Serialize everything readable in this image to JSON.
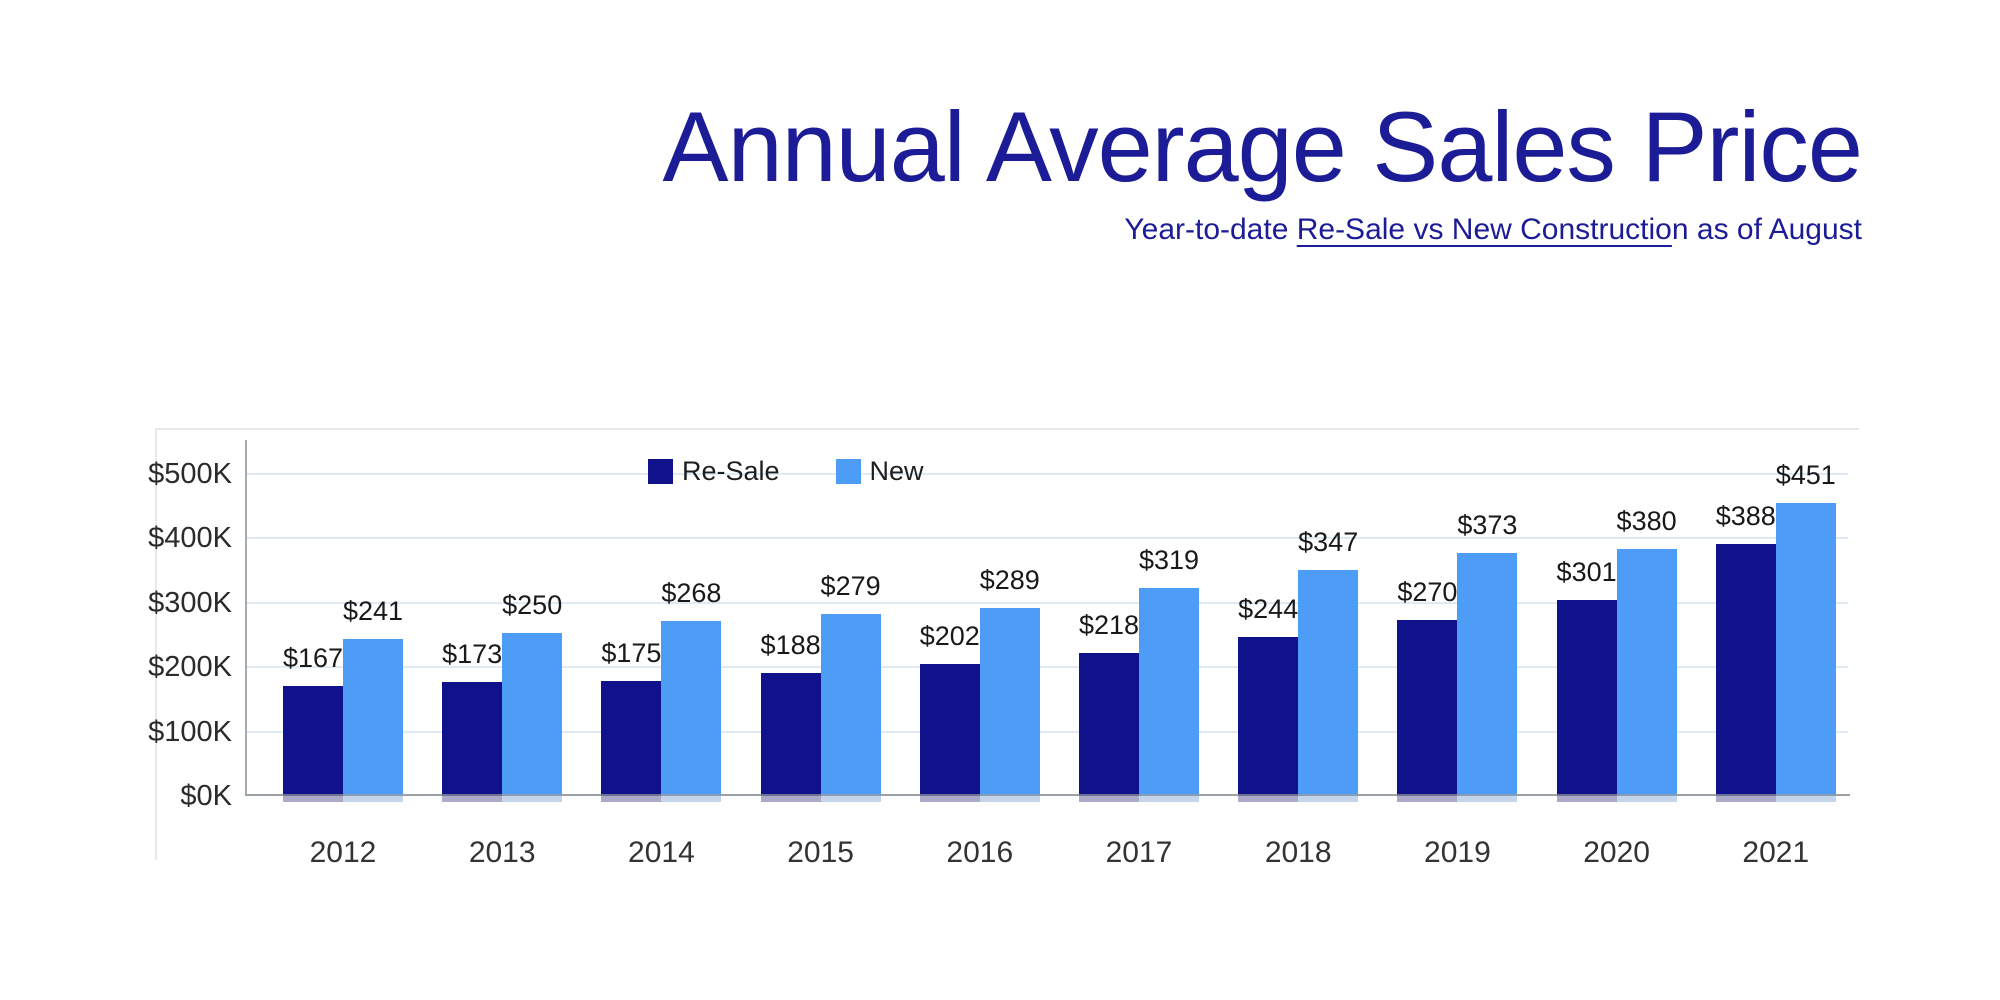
{
  "header": {
    "title": "Annual Average Sales Price",
    "subtitle_prefix": "Year-to-date ",
    "subtitle_underlined": "Re-Sale vs New Constructio",
    "subtitle_suffix": "n as of August"
  },
  "colors": {
    "title_text": "#1c1c96",
    "resale_bar": "#10128c",
    "new_bar": "#4d9cf5",
    "gridline": "#dfeaf5",
    "axis_line": "#9aa2a6",
    "value_label_text": "#191919",
    "tick_label_text": "#2b2b2b"
  },
  "chart_data": {
    "type": "bar",
    "title": "Annual Average Sales Price",
    "subtitle": "Year-to-date Re-Sale vs New Construction as of August",
    "categories": [
      "2012",
      "2013",
      "2014",
      "2015",
      "2016",
      "2017",
      "2018",
      "2019",
      "2020",
      "2021"
    ],
    "series": [
      {
        "name": "Re-Sale",
        "color": "#10128c",
        "values": [
          167,
          173,
          175,
          188,
          202,
          218,
          244,
          270,
          301,
          388
        ],
        "data_labels": [
          "$167",
          "$173",
          "$175",
          "$188",
          "$202",
          "$218",
          "$244",
          "$270",
          "$301",
          "$388"
        ]
      },
      {
        "name": "New",
        "color": "#4d9cf5",
        "values": [
          241,
          250,
          268,
          279,
          289,
          319,
          347,
          373,
          380,
          451
        ],
        "data_labels": [
          "$241",
          "$250",
          "$268",
          "$279",
          "$289",
          "$319",
          "$347",
          "$373",
          "$380",
          "$451"
        ]
      }
    ],
    "value_label_prefix": "$",
    "y_ticks": [
      {
        "label": "$0K",
        "value": 0
      },
      {
        "label": "$100K",
        "value": 100
      },
      {
        "label": "$200K",
        "value": 200
      },
      {
        "label": "$300K",
        "value": 300
      },
      {
        "label": "$400K",
        "value": 400
      },
      {
        "label": "$500K",
        "value": 500
      }
    ],
    "ylim": [
      0,
      500
    ],
    "grid": true,
    "legend_position": "inside-top-left"
  }
}
